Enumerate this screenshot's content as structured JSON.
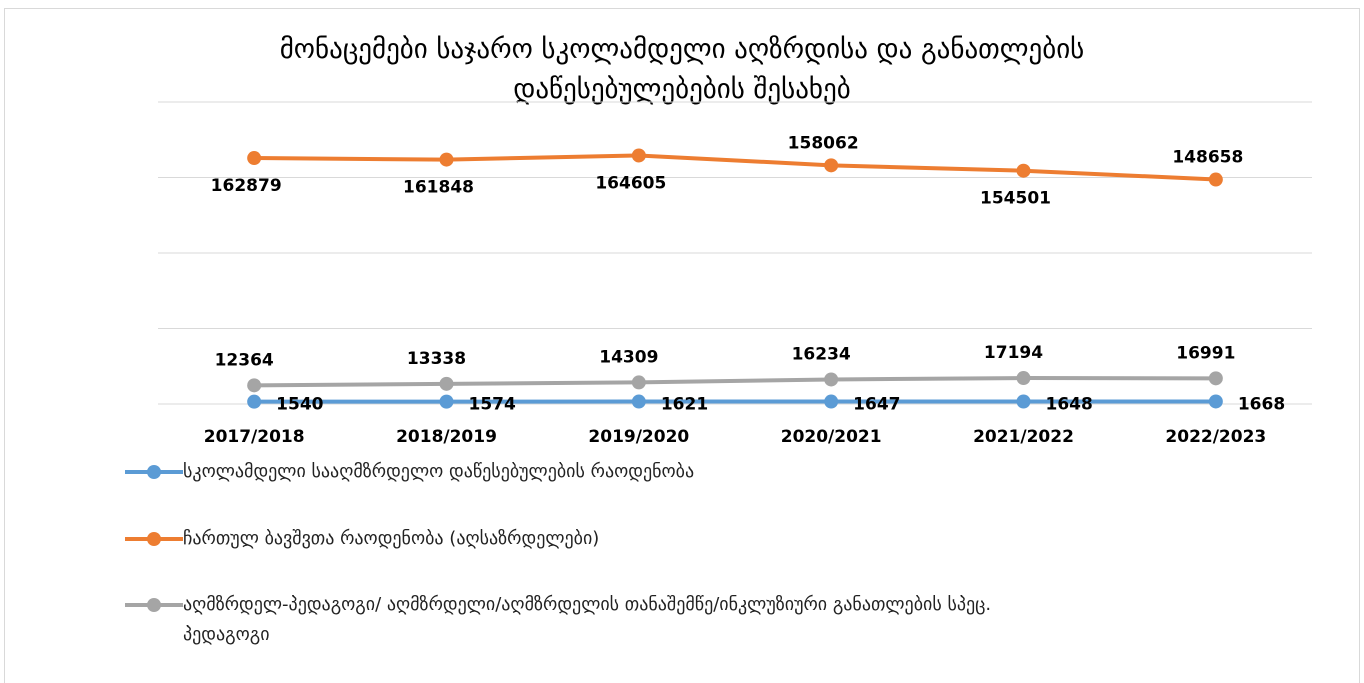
{
  "chart_data": {
    "type": "line",
    "title": "მონაცემები საჯარო სკოლამდელი აღზრდისა და განათლების დაწესებულებების შესახებ",
    "categories": [
      "2017/2018",
      "2018/2019",
      "2019/2020",
      "2020/2021",
      "2021/2022",
      "2022/2023"
    ],
    "series": [
      {
        "name": "სკოლამდელი სააღმზრდელო დაწესებულების რაოდენობა",
        "color": "#5b9bd5",
        "values": [
          1540,
          1574,
          1621,
          1647,
          1648,
          1668
        ]
      },
      {
        "name": "ჩართულ ბავშვთა რაოდენობა (აღსაზრდელები)",
        "color": "#ed7d31",
        "values": [
          162879,
          161848,
          164605,
          158062,
          154501,
          148658
        ]
      },
      {
        "name": "აღმზრდელ-პედაგოგი/ აღმზრდელი/აღმზრდელის თანაშემწე/ინკლუზიური განათლების სპეც. პედაგოგი",
        "color": "#a5a5a5",
        "values": [
          12364,
          13338,
          14309,
          16234,
          17194,
          16991
        ]
      }
    ],
    "ylim": [
      0,
      200000
    ],
    "yticks": [
      0,
      50000,
      100000,
      150000,
      200000
    ],
    "grid": true,
    "legend": "bottom"
  }
}
